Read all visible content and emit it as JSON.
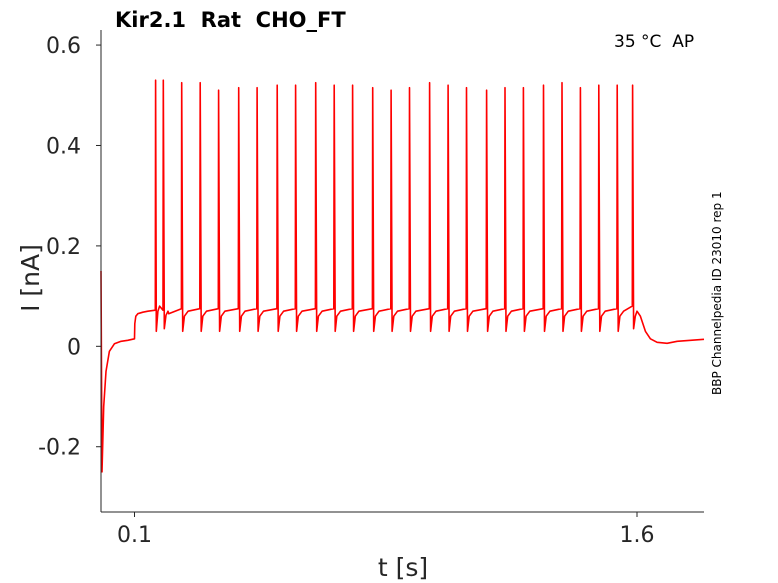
{
  "title": "Kir2.1  Rat  CHO_FT",
  "condition": "35 °C  AP",
  "side_note": "BBP Channelpedia ID 23010 rep 1",
  "chart_data": {
    "type": "line",
    "xlabel": "t [s]",
    "ylabel": "I [nA]",
    "xlim": [
      0.0,
      1.8
    ],
    "ylim": [
      -0.33,
      0.63
    ],
    "x_ticks": [
      {
        "value": 0.1,
        "label": "0.1"
      },
      {
        "value": 1.6,
        "label": "1.6"
      }
    ],
    "y_ticks": [
      {
        "value": 0.6,
        "label": "0.6"
      },
      {
        "value": 0.4,
        "label": "0.4"
      },
      {
        "value": 0.2,
        "label": "0.2"
      },
      {
        "value": 0.0,
        "label": "0"
      },
      {
        "value": -0.2,
        "label": "-0.2"
      }
    ],
    "grid": false,
    "series": [
      {
        "color": "#ff0000",
        "x": [
          0.0,
          0.003,
          0.008,
          0.015,
          0.025,
          0.04,
          0.06,
          0.08,
          0.1,
          0.101,
          0.104,
          0.11,
          0.125,
          0.14,
          0.162,
          0.163,
          0.165,
          0.17,
          0.175,
          0.185,
          0.186,
          0.189,
          0.194,
          0.2,
          0.202,
          0.24,
          0.241,
          0.244,
          0.249,
          0.26,
          0.295,
          0.296,
          0.299,
          0.304,
          0.315,
          0.35,
          0.351,
          0.354,
          0.359,
          0.37,
          0.41,
          0.411,
          0.414,
          0.419,
          0.43,
          0.465,
          0.466,
          0.469,
          0.474,
          0.485,
          0.525,
          0.526,
          0.529,
          0.534,
          0.545,
          0.58,
          0.581,
          0.584,
          0.589,
          0.6,
          0.64,
          0.641,
          0.644,
          0.649,
          0.66,
          0.695,
          0.696,
          0.699,
          0.704,
          0.715,
          0.75,
          0.751,
          0.754,
          0.759,
          0.77,
          0.81,
          0.811,
          0.814,
          0.819,
          0.83,
          0.865,
          0.866,
          0.869,
          0.874,
          0.885,
          0.92,
          0.921,
          0.924,
          0.929,
          0.94,
          0.98,
          0.981,
          0.984,
          0.989,
          1.0,
          1.035,
          1.036,
          1.039,
          1.044,
          1.055,
          1.09,
          1.091,
          1.094,
          1.099,
          1.11,
          1.15,
          1.151,
          1.154,
          1.159,
          1.17,
          1.205,
          1.206,
          1.209,
          1.214,
          1.225,
          1.26,
          1.261,
          1.264,
          1.269,
          1.28,
          1.32,
          1.321,
          1.324,
          1.329,
          1.34,
          1.375,
          1.376,
          1.379,
          1.384,
          1.395,
          1.43,
          1.431,
          1.434,
          1.439,
          1.45,
          1.485,
          1.486,
          1.489,
          1.494,
          1.505,
          1.54,
          1.541,
          1.544,
          1.549,
          1.56,
          1.586,
          1.587,
          1.59,
          1.595,
          1.6,
          1.61,
          1.625,
          1.64,
          1.66,
          1.69,
          1.72,
          1.76,
          1.8
        ],
        "y": [
          0.15,
          -0.25,
          -0.12,
          -0.05,
          -0.01,
          0.005,
          0.01,
          0.012,
          0.015,
          0.045,
          0.06,
          0.065,
          0.068,
          0.07,
          0.072,
          0.53,
          0.03,
          0.07,
          0.08,
          0.072,
          0.53,
          0.035,
          0.062,
          0.07,
          0.065,
          0.075,
          0.525,
          0.03,
          0.06,
          0.07,
          0.075,
          0.525,
          0.03,
          0.06,
          0.07,
          0.075,
          0.51,
          0.03,
          0.06,
          0.07,
          0.075,
          0.515,
          0.03,
          0.06,
          0.07,
          0.075,
          0.515,
          0.03,
          0.06,
          0.07,
          0.075,
          0.52,
          0.03,
          0.06,
          0.07,
          0.075,
          0.52,
          0.03,
          0.06,
          0.07,
          0.075,
          0.525,
          0.03,
          0.06,
          0.07,
          0.075,
          0.52,
          0.03,
          0.06,
          0.07,
          0.075,
          0.52,
          0.03,
          0.06,
          0.07,
          0.075,
          0.515,
          0.03,
          0.06,
          0.07,
          0.075,
          0.51,
          0.03,
          0.06,
          0.07,
          0.075,
          0.515,
          0.03,
          0.06,
          0.07,
          0.075,
          0.525,
          0.03,
          0.06,
          0.07,
          0.075,
          0.52,
          0.03,
          0.06,
          0.07,
          0.075,
          0.515,
          0.03,
          0.06,
          0.07,
          0.075,
          0.51,
          0.03,
          0.06,
          0.07,
          0.075,
          0.515,
          0.03,
          0.06,
          0.07,
          0.075,
          0.515,
          0.03,
          0.06,
          0.07,
          0.075,
          0.52,
          0.03,
          0.06,
          0.07,
          0.075,
          0.525,
          0.03,
          0.06,
          0.07,
          0.075,
          0.515,
          0.03,
          0.06,
          0.07,
          0.075,
          0.52,
          0.03,
          0.06,
          0.07,
          0.075,
          0.52,
          0.03,
          0.06,
          0.07,
          0.08,
          0.52,
          0.035,
          0.06,
          0.07,
          0.06,
          0.03,
          0.015,
          0.008,
          0.006,
          0.01,
          0.012,
          0.014
        ]
      }
    ]
  }
}
